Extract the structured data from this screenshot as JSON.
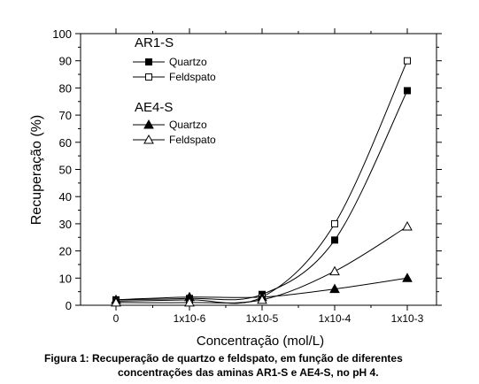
{
  "chart_data": {
    "type": "line",
    "xlabel": "Concentração (mol/L)",
    "ylabel": "Recuperação (%)",
    "categories": [
      "0",
      "1x10-6",
      "1x10-5",
      "1x10-4",
      "1x10-3"
    ],
    "ylim": [
      0,
      100
    ],
    "yticks": [
      0,
      10,
      20,
      30,
      40,
      50,
      60,
      70,
      80,
      90,
      100
    ],
    "grid": false,
    "legend_position": "top-left",
    "legend_groups": [
      {
        "title": "AR1-S",
        "entries": [
          "Quartzo",
          "Feldspato"
        ]
      },
      {
        "title": "AE4-S",
        "entries": [
          "Quartzo",
          "Feldspato"
        ]
      }
    ],
    "series": [
      {
        "name": "Quartzo",
        "group": "AR1-S",
        "marker": "square-filled",
        "values": [
          2,
          2.5,
          4,
          24,
          79
        ]
      },
      {
        "name": "Feldspato",
        "group": "AR1-S",
        "marker": "square-open",
        "values": [
          1.5,
          2,
          3,
          30,
          90
        ]
      },
      {
        "name": "Quartzo",
        "group": "AE4-S",
        "marker": "triangle-filled",
        "values": [
          2,
          3,
          3,
          6,
          10
        ]
      },
      {
        "name": "Feldspato",
        "group": "AE4-S",
        "marker": "triangle-open",
        "values": [
          1,
          1,
          2,
          12.5,
          29
        ]
      }
    ]
  },
  "caption": {
    "line1": "Figura 1: Recuperação de quartzo e feldspato, em função de diferentes",
    "line2": "concentrações das aminas AR1-S e AE4-S, no pH 4."
  }
}
